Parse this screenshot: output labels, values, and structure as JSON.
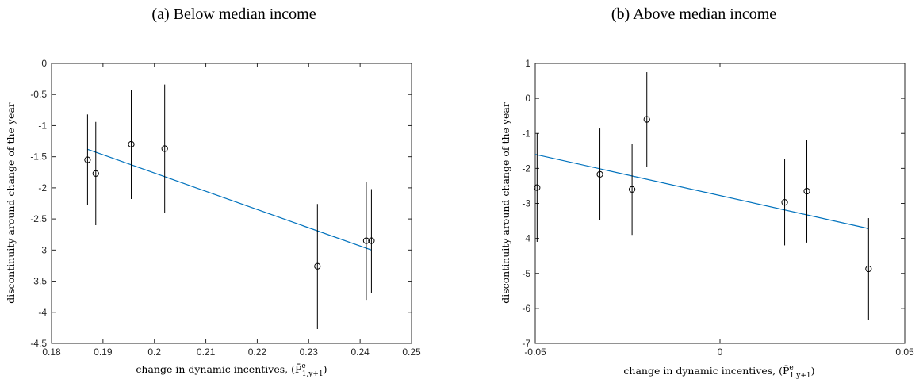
{
  "chart_data": [
    {
      "type": "scatter",
      "title": "(a) Below median income",
      "xlabel": "change in dynamic incentives, (P̄",
      "xlabel_sup": "e",
      "xlabel_sub": "1,y+1",
      "xlabel_close": ")",
      "ylabel": "discontinuity around change of the year",
      "xlim": [
        0.18,
        0.25
      ],
      "ylim": [
        -4.5,
        0
      ],
      "xticks": [
        "0.18",
        "0.19",
        "0.2",
        "0.21",
        "0.22",
        "0.23",
        "0.24",
        "0.25"
      ],
      "yticks": [
        "-4.5",
        "-4",
        "-3.5",
        "-3",
        "-2.5",
        "-2",
        "-1.5",
        "-1",
        "-0.5",
        "0"
      ],
      "points": [
        {
          "x": 0.187,
          "y": -1.55,
          "low": -2.28,
          "high": -0.82
        },
        {
          "x": 0.1886,
          "y": -1.77,
          "low": -2.6,
          "high": -0.94
        },
        {
          "x": 0.1955,
          "y": -1.3,
          "low": -2.18,
          "high": -0.42
        },
        {
          "x": 0.202,
          "y": -1.37,
          "low": -2.4,
          "high": -0.34
        },
        {
          "x": 0.2317,
          "y": -3.26,
          "low": -4.27,
          "high": -2.26
        },
        {
          "x": 0.2412,
          "y": -2.85,
          "low": -3.8,
          "high": -1.9
        },
        {
          "x": 0.2422,
          "y": -2.85,
          "low": -3.69,
          "high": -2.02
        }
      ],
      "fit": {
        "x": [
          0.187,
          0.2422
        ],
        "y": [
          -1.38,
          -3.0
        ]
      },
      "colors": {
        "fit": "#0072BD",
        "points": "#000000"
      }
    },
    {
      "type": "scatter",
      "title": "(b) Above median income",
      "xlabel": "change in dynamic incentives, (P̄",
      "xlabel_sup": "e",
      "xlabel_sub": "1,y+1",
      "xlabel_close": ")",
      "ylabel": "discontinuity around change of the year",
      "xlim": [
        -0.05,
        0.05
      ],
      "ylim": [
        -7,
        1
      ],
      "xticks": [
        "-0.05",
        "0",
        "0.05"
      ],
      "xtick_values": [
        -0.05,
        0,
        0.05
      ],
      "yticks": [
        "-7",
        "-6",
        "-5",
        "-4",
        "-3",
        "-2",
        "-1",
        "0",
        "1"
      ],
      "points": [
        {
          "x": -0.0495,
          "y": -2.55,
          "low": -4.1,
          "high": -1.0
        },
        {
          "x": -0.0325,
          "y": -2.17,
          "low": -3.48,
          "high": -0.86
        },
        {
          "x": -0.0238,
          "y": -2.6,
          "low": -3.9,
          "high": -1.3
        },
        {
          "x": -0.0198,
          "y": -0.6,
          "low": -1.95,
          "high": 0.75
        },
        {
          "x": 0.0175,
          "y": -2.97,
          "low": -4.2,
          "high": -1.74
        },
        {
          "x": 0.0235,
          "y": -2.65,
          "low": -4.12,
          "high": -1.18
        },
        {
          "x": 0.0402,
          "y": -4.87,
          "low": -6.32,
          "high": -3.42
        }
      ],
      "fit": {
        "x": [
          -0.05,
          0.0402
        ],
        "y": [
          -1.6,
          -3.72
        ]
      },
      "colors": {
        "fit": "#0072BD",
        "points": "#000000"
      }
    }
  ]
}
